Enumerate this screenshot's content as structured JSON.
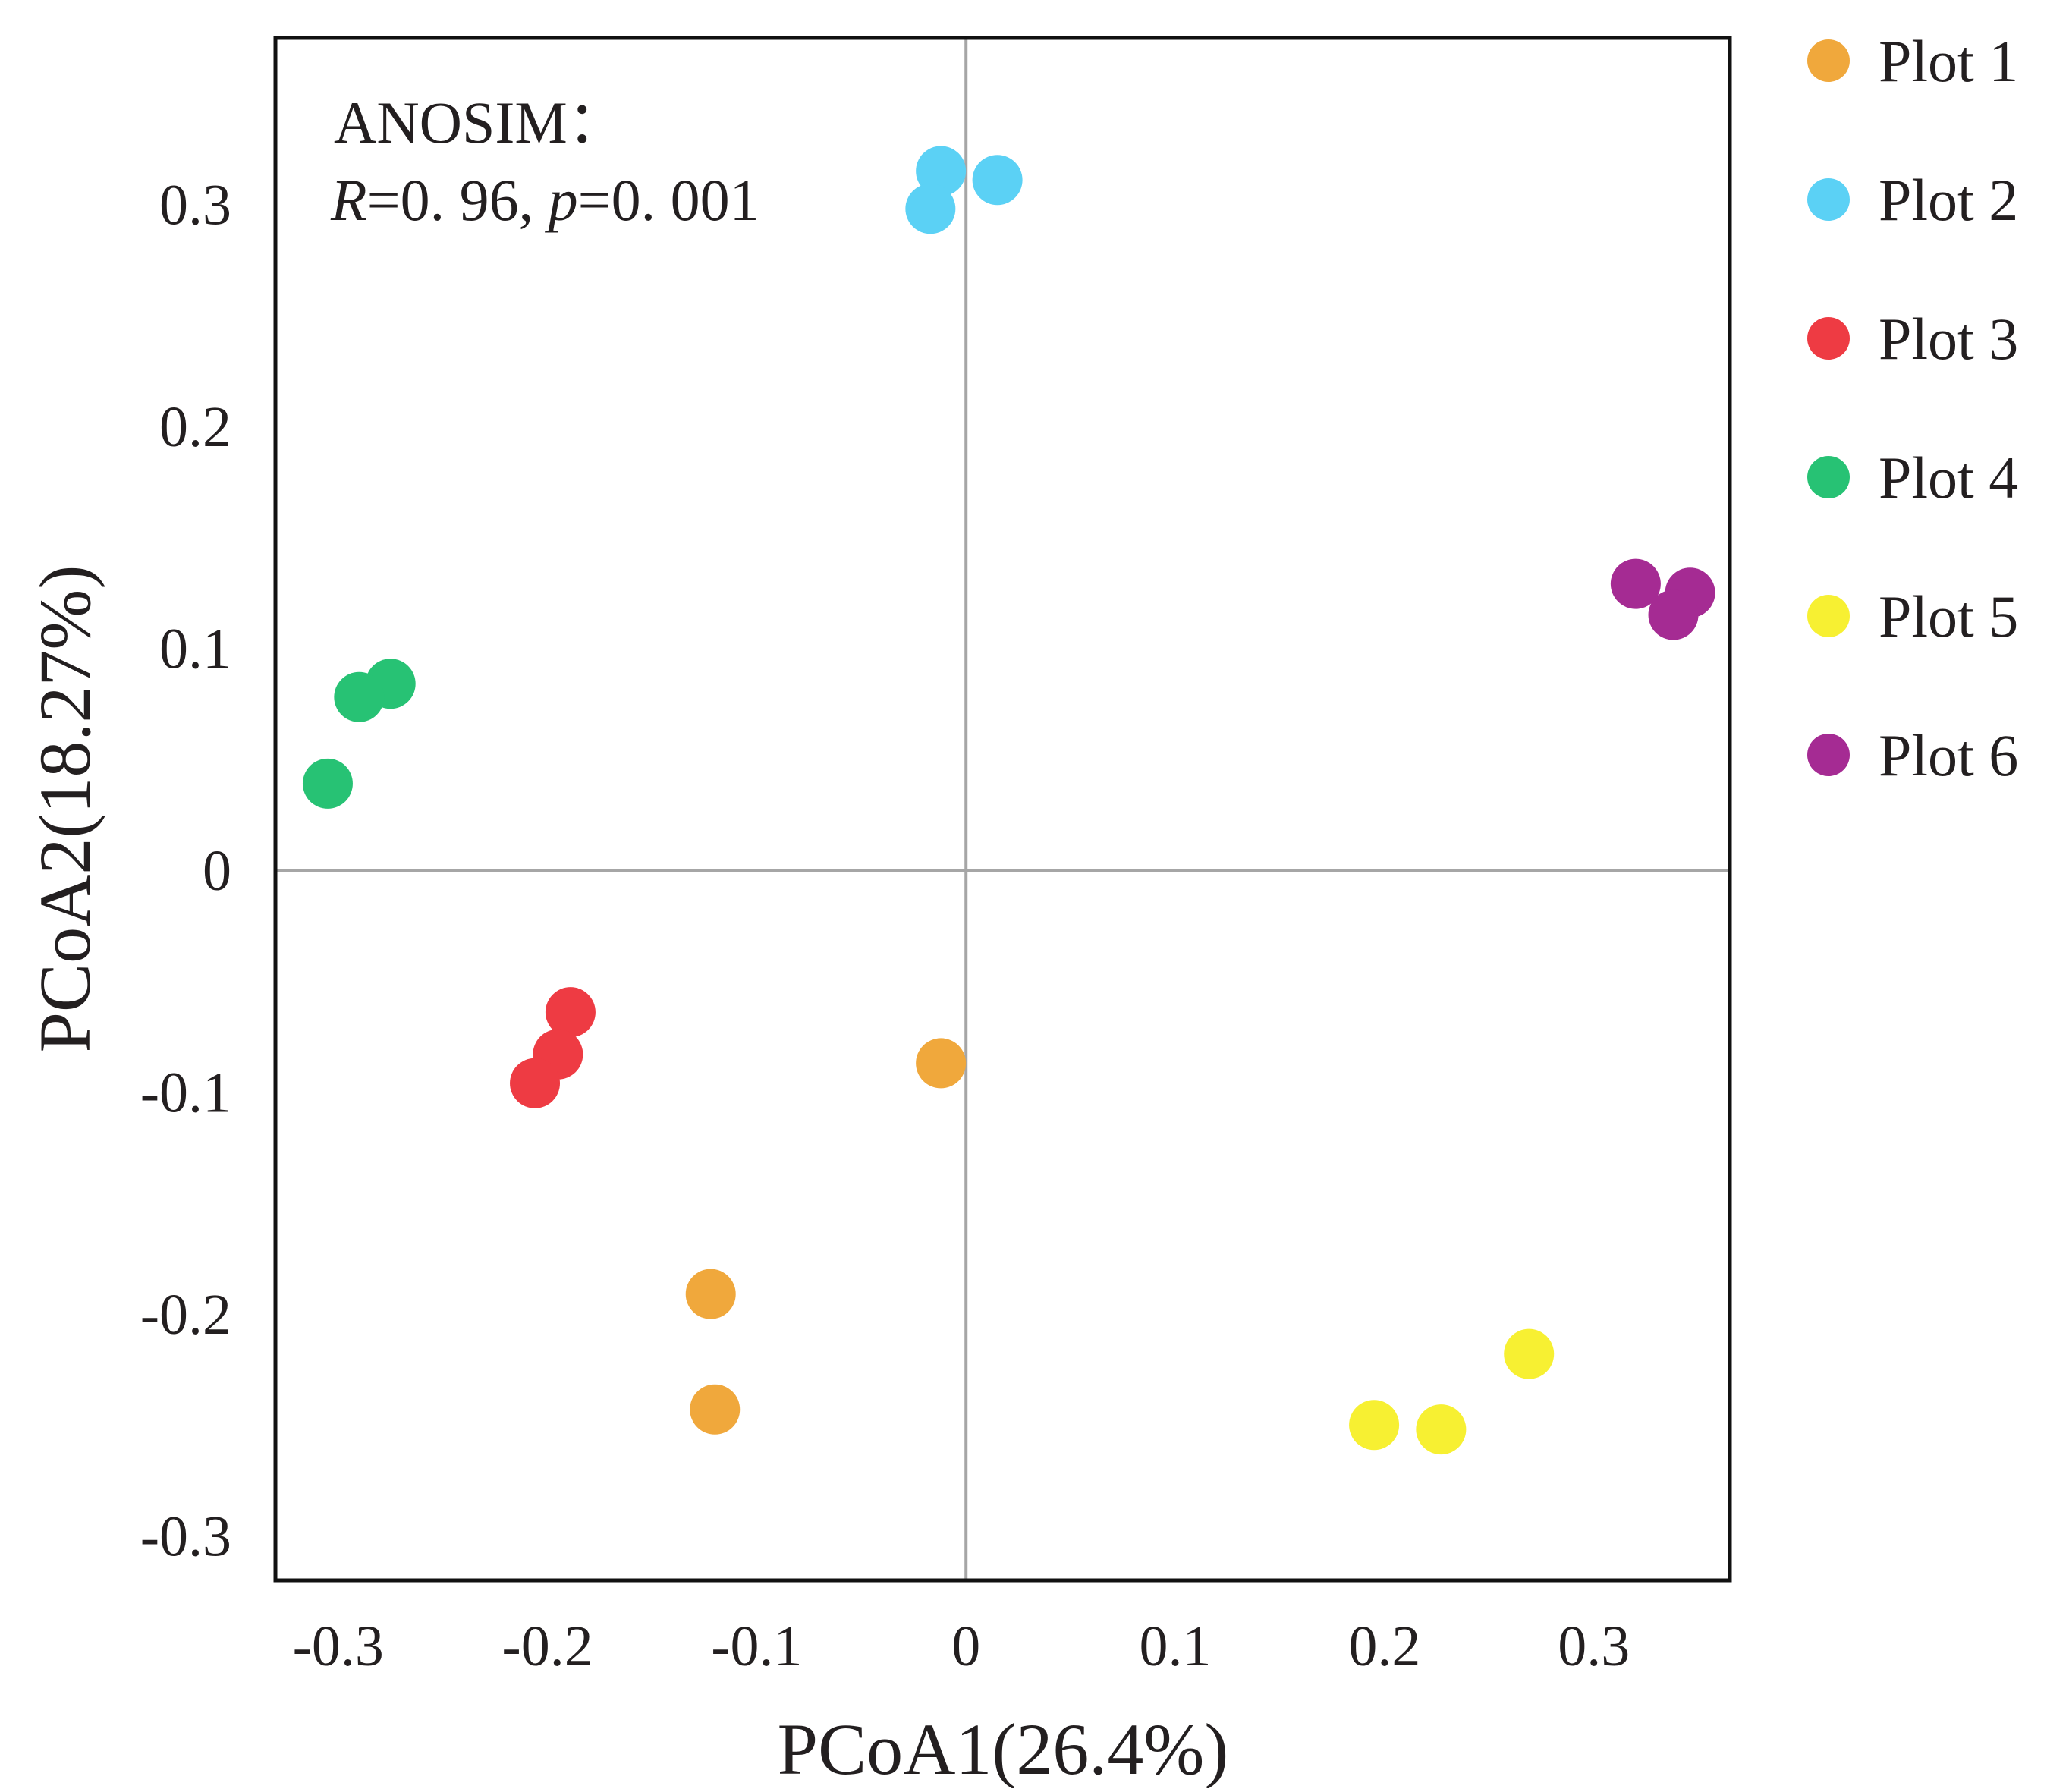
{
  "chart_data": {
    "type": "scatter",
    "title": "",
    "xlabel": "PCoA1(26.4%)",
    "ylabel": "PCoA2(18.27%)",
    "xlim": [
      -0.33,
      0.365
    ],
    "ylim": [
      -0.32,
      0.375
    ],
    "xticks": [
      {
        "value": -0.3,
        "label": "-0.3"
      },
      {
        "value": -0.2,
        "label": "-0.2"
      },
      {
        "value": -0.1,
        "label": "-0.1"
      },
      {
        "value": 0,
        "label": "0"
      },
      {
        "value": 0.1,
        "label": "0.1"
      },
      {
        "value": 0.2,
        "label": "0.2"
      },
      {
        "value": 0.3,
        "label": "0.3"
      }
    ],
    "yticks": [
      {
        "value": 0.3,
        "label": "0.3"
      },
      {
        "value": 0.2,
        "label": "0.2"
      },
      {
        "value": 0.1,
        "label": "0.1"
      },
      {
        "value": 0,
        "label": "0"
      },
      {
        "value": -0.1,
        "label": "-0.1"
      },
      {
        "value": -0.2,
        "label": "-0.2"
      },
      {
        "value": -0.3,
        "label": "-0.3"
      }
    ],
    "grid": false,
    "zero_lines": true,
    "legend_position": "outside-right",
    "annotation": {
      "line1": "ANOSIM：",
      "r_symbol": "R",
      "r_rest": "=0. 96, ",
      "p_symbol": "p",
      "p_rest": "=0. 001"
    },
    "series": [
      {
        "name": "Plot 1",
        "color": "#f0a83c",
        "points": [
          [
            -0.012,
            -0.087
          ],
          [
            -0.122,
            -0.191
          ],
          [
            -0.12,
            -0.243
          ]
        ]
      },
      {
        "name": "Plot 2",
        "color": "#5bd1f5",
        "points": [
          [
            -0.012,
            0.315
          ],
          [
            -0.017,
            0.298
          ],
          [
            0.015,
            0.311
          ]
        ]
      },
      {
        "name": "Plot 3",
        "color": "#ee3b43",
        "points": [
          [
            -0.189,
            -0.064
          ],
          [
            -0.195,
            -0.083
          ],
          [
            -0.206,
            -0.096
          ]
        ]
      },
      {
        "name": "Plot 4",
        "color": "#27c274",
        "points": [
          [
            -0.275,
            0.084
          ],
          [
            -0.29,
            0.078
          ],
          [
            -0.305,
            0.039
          ]
        ]
      },
      {
        "name": "Plot 5",
        "color": "#f7f032",
        "points": [
          [
            0.195,
            -0.25
          ],
          [
            0.227,
            -0.252
          ],
          [
            0.269,
            -0.218
          ]
        ]
      },
      {
        "name": "Plot 6",
        "color": "#a52b93",
        "points": [
          [
            0.32,
            0.129
          ],
          [
            0.346,
            0.125
          ],
          [
            0.338,
            0.115
          ]
        ]
      }
    ]
  }
}
